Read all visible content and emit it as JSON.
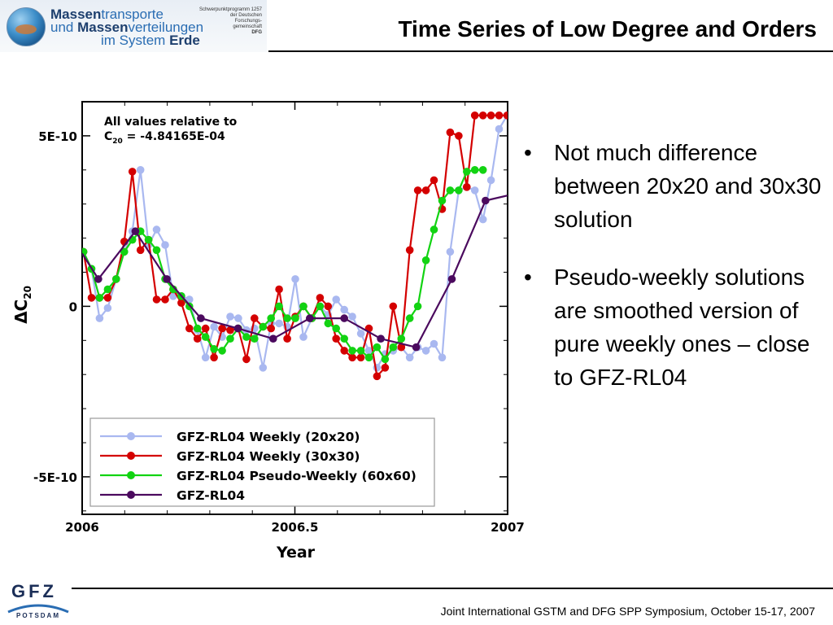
{
  "header": {
    "logo": {
      "line1_bold": "Massen",
      "line1_light": "transporte",
      "line2_light1": "und ",
      "line2_bold": "Massen",
      "line2_light2": "verteilungen",
      "line3_light": "im System ",
      "line3_bold": "Erde",
      "small_lines": [
        "Schwerpunktprogramm 1257",
        "der Deutschen",
        "Forschungs-",
        "gemeinschaft",
        "DFG"
      ]
    },
    "title": "Time Series of Low Degree and Orders"
  },
  "bullets": [
    "Not much difference between 20x20 and 30x30 solution",
    "Pseudo-weekly solutions are smoothed version of pure weekly ones – close to GFZ-RL04"
  ],
  "bullet_symbol": "•",
  "footer": {
    "logo_text": "GFZ",
    "logo_subtext": "POTSDAM",
    "text": "Joint International GSTM and DFG SPP Symposium, October 15-17, 2007"
  },
  "chart_data": {
    "type": "line",
    "xlabel": "Year",
    "ylabel_prefix": "ΔC",
    "ylabel_sub": "20",
    "xlim": [
      2006,
      2007
    ],
    "ylim": [
      -6.1e-10,
      6e-10
    ],
    "xticks": [
      {
        "value": 2006,
        "label": "2006"
      },
      {
        "value": 2006.5,
        "label": "2006.5"
      },
      {
        "value": 2007,
        "label": "2007"
      }
    ],
    "yticks": [
      {
        "value": 5e-10,
        "label": "5E-10"
      },
      {
        "value": 0,
        "label": "0"
      },
      {
        "value": -5e-10,
        "label": "-5E-10"
      }
    ],
    "annotation_line1": "All values relative to",
    "annotation_c": "C",
    "annotation_sub": "20",
    "annotation_rest": " = -4.84165E-04",
    "legend_position": "bottom-left",
    "grid": false,
    "series": [
      {
        "name": "GFZ-RL04 Weekly (20x20)",
        "color": "#a9b8f0",
        "marker": "circle",
        "x": [
          2006.003,
          2006.022,
          2006.041,
          2006.06,
          2006.08,
          2006.099,
          2006.118,
          2006.137,
          2006.156,
          2006.175,
          2006.195,
          2006.214,
          2006.233,
          2006.252,
          2006.271,
          2006.29,
          2006.31,
          2006.329,
          2006.348,
          2006.367,
          2006.386,
          2006.405,
          2006.425,
          2006.444,
          2006.463,
          2006.482,
          2006.501,
          2006.52,
          2006.54,
          2006.559,
          2006.578,
          2006.597,
          2006.616,
          2006.635,
          2006.655,
          2006.674,
          2006.693,
          2006.712,
          2006.731,
          2006.75,
          2006.77,
          2006.789,
          2006.808,
          2006.827,
          2006.846,
          2006.865,
          2006.885,
          2006.904,
          2006.923,
          2006.942,
          2006.961,
          2006.98,
          2006.999
        ],
        "values": [
          1.6e-10,
          1.1e-10,
          -3.5e-11,
          -5e-12,
          8e-11,
          1.6e-10,
          2.2e-10,
          4e-10,
          1.8e-10,
          2.25e-10,
          1.8e-10,
          3e-11,
          3e-11,
          2e-11,
          -7e-11,
          -1.5e-10,
          -6e-11,
          -9e-11,
          -3e-11,
          -3.5e-11,
          -7e-11,
          -6.5e-11,
          -1.8e-10,
          -5e-11,
          -5e-11,
          -6e-11,
          8e-11,
          -9e-11,
          -3.5e-11,
          0,
          -2.5e-11,
          2e-11,
          -1e-11,
          -3e-11,
          -8e-11,
          -1.3e-10,
          -1.8e-10,
          -1.4e-10,
          -1.3e-10,
          -1.2e-10,
          -1.5e-10,
          -1.2e-10,
          -1.3e-10,
          -1.1e-10,
          -1.5e-10,
          1.6e-10,
          3.4e-10,
          3.5e-10,
          3.4e-10,
          2.55e-10,
          3.7e-10,
          5.2e-10,
          5.6e-10
        ]
      },
      {
        "name": "GFZ-RL04 Weekly (30x30)",
        "color": "#d40000",
        "marker": "circle",
        "x": [
          2006.003,
          2006.022,
          2006.041,
          2006.06,
          2006.08,
          2006.099,
          2006.118,
          2006.137,
          2006.156,
          2006.175,
          2006.195,
          2006.214,
          2006.233,
          2006.252,
          2006.271,
          2006.29,
          2006.31,
          2006.329,
          2006.348,
          2006.367,
          2006.386,
          2006.405,
          2006.425,
          2006.444,
          2006.463,
          2006.482,
          2006.501,
          2006.52,
          2006.54,
          2006.559,
          2006.578,
          2006.597,
          2006.616,
          2006.635,
          2006.655,
          2006.674,
          2006.693,
          2006.712,
          2006.731,
          2006.75,
          2006.77,
          2006.789,
          2006.808,
          2006.827,
          2006.846,
          2006.865,
          2006.885,
          2006.904,
          2006.923,
          2006.942,
          2006.961,
          2006.98,
          2006.999
        ],
        "values": [
          1.6e-10,
          2.5e-11,
          2.5e-11,
          2.5e-11,
          8e-11,
          1.9e-10,
          3.95e-10,
          1.65e-10,
          1.95e-10,
          2e-11,
          2e-11,
          5e-11,
          1e-11,
          -6.5e-11,
          -9.5e-11,
          -6.5e-11,
          -1.5e-10,
          -6.5e-11,
          -7e-11,
          -6.5e-11,
          -1.55e-10,
          -3.5e-11,
          -6e-11,
          -6.5e-11,
          5e-11,
          -9.5e-11,
          -3e-11,
          0,
          -3.5e-11,
          2.5e-11,
          0,
          -9.5e-11,
          -1.3e-10,
          -1.5e-10,
          -1.5e-10,
          -6.5e-11,
          -2.05e-10,
          -1.8e-10,
          0,
          -1.2e-10,
          1.65e-10,
          3.4e-10,
          3.4e-10,
          3.7e-10,
          2.85e-10,
          5.1e-10,
          5e-10,
          3.5e-10,
          5.6e-10,
          5.6e-10,
          5.6e-10,
          5.6e-10,
          5.6e-10
        ],
        "x_override_note": ""
      },
      {
        "name": "GFZ-RL04 Pseudo-Weekly (60x60)",
        "color": "#12d312",
        "marker": "circle",
        "x": [
          2006.003,
          2006.022,
          2006.041,
          2006.06,
          2006.08,
          2006.099,
          2006.118,
          2006.137,
          2006.156,
          2006.175,
          2006.195,
          2006.214,
          2006.233,
          2006.252,
          2006.271,
          2006.29,
          2006.31,
          2006.329,
          2006.348,
          2006.367,
          2006.386,
          2006.405,
          2006.425,
          2006.444,
          2006.463,
          2006.482,
          2006.501,
          2006.52,
          2006.54,
          2006.559,
          2006.578,
          2006.597,
          2006.616,
          2006.635,
          2006.655,
          2006.674,
          2006.693,
          2006.712,
          2006.731,
          2006.75,
          2006.77,
          2006.789,
          2006.808,
          2006.827,
          2006.846,
          2006.865,
          2006.885,
          2006.904,
          2006.923,
          2006.942
        ],
        "values": [
          1.6e-10,
          1.1e-10,
          2.5e-11,
          5e-11,
          8e-11,
          1.6e-10,
          1.95e-10,
          2.2e-10,
          1.95e-10,
          1.65e-10,
          8e-11,
          5e-11,
          3e-11,
          0,
          -6.5e-11,
          -9e-11,
          -1.25e-10,
          -1.3e-10,
          -9.5e-11,
          -6.5e-11,
          -9e-11,
          -9.5e-11,
          -6e-11,
          -3.5e-11,
          0,
          -3.5e-11,
          -3.5e-11,
          0,
          -3.5e-11,
          0,
          -5e-11,
          -6.5e-11,
          -9.5e-11,
          -1.3e-10,
          -1.3e-10,
          -1.5e-10,
          -1.2e-10,
          -1.55e-10,
          -1.2e-10,
          -9.5e-11,
          -3.5e-11,
          0,
          1.35e-10,
          2.25e-10,
          3.1e-10,
          3.4e-10,
          3.4e-10,
          3.95e-10,
          4e-10,
          4e-10
        ]
      },
      {
        "name": "GFZ-RL04",
        "color": "#4b0a5e",
        "marker": "circle",
        "x": [
          2006.0,
          2006.038,
          2006.125,
          2006.199,
          2006.279,
          2006.366,
          2006.449,
          2006.535,
          2006.616,
          2006.702,
          2006.785,
          2006.869,
          2006.948,
          2007.0
        ],
        "values": [
          1.55e-10,
          8e-11,
          2.2e-10,
          8e-11,
          -3.5e-11,
          -6.5e-11,
          -9.5e-11,
          -3.5e-11,
          -3.5e-11,
          -9.5e-11,
          -1.2e-10,
          8e-11,
          3.1e-10,
          3.25e-10
        ]
      }
    ]
  }
}
